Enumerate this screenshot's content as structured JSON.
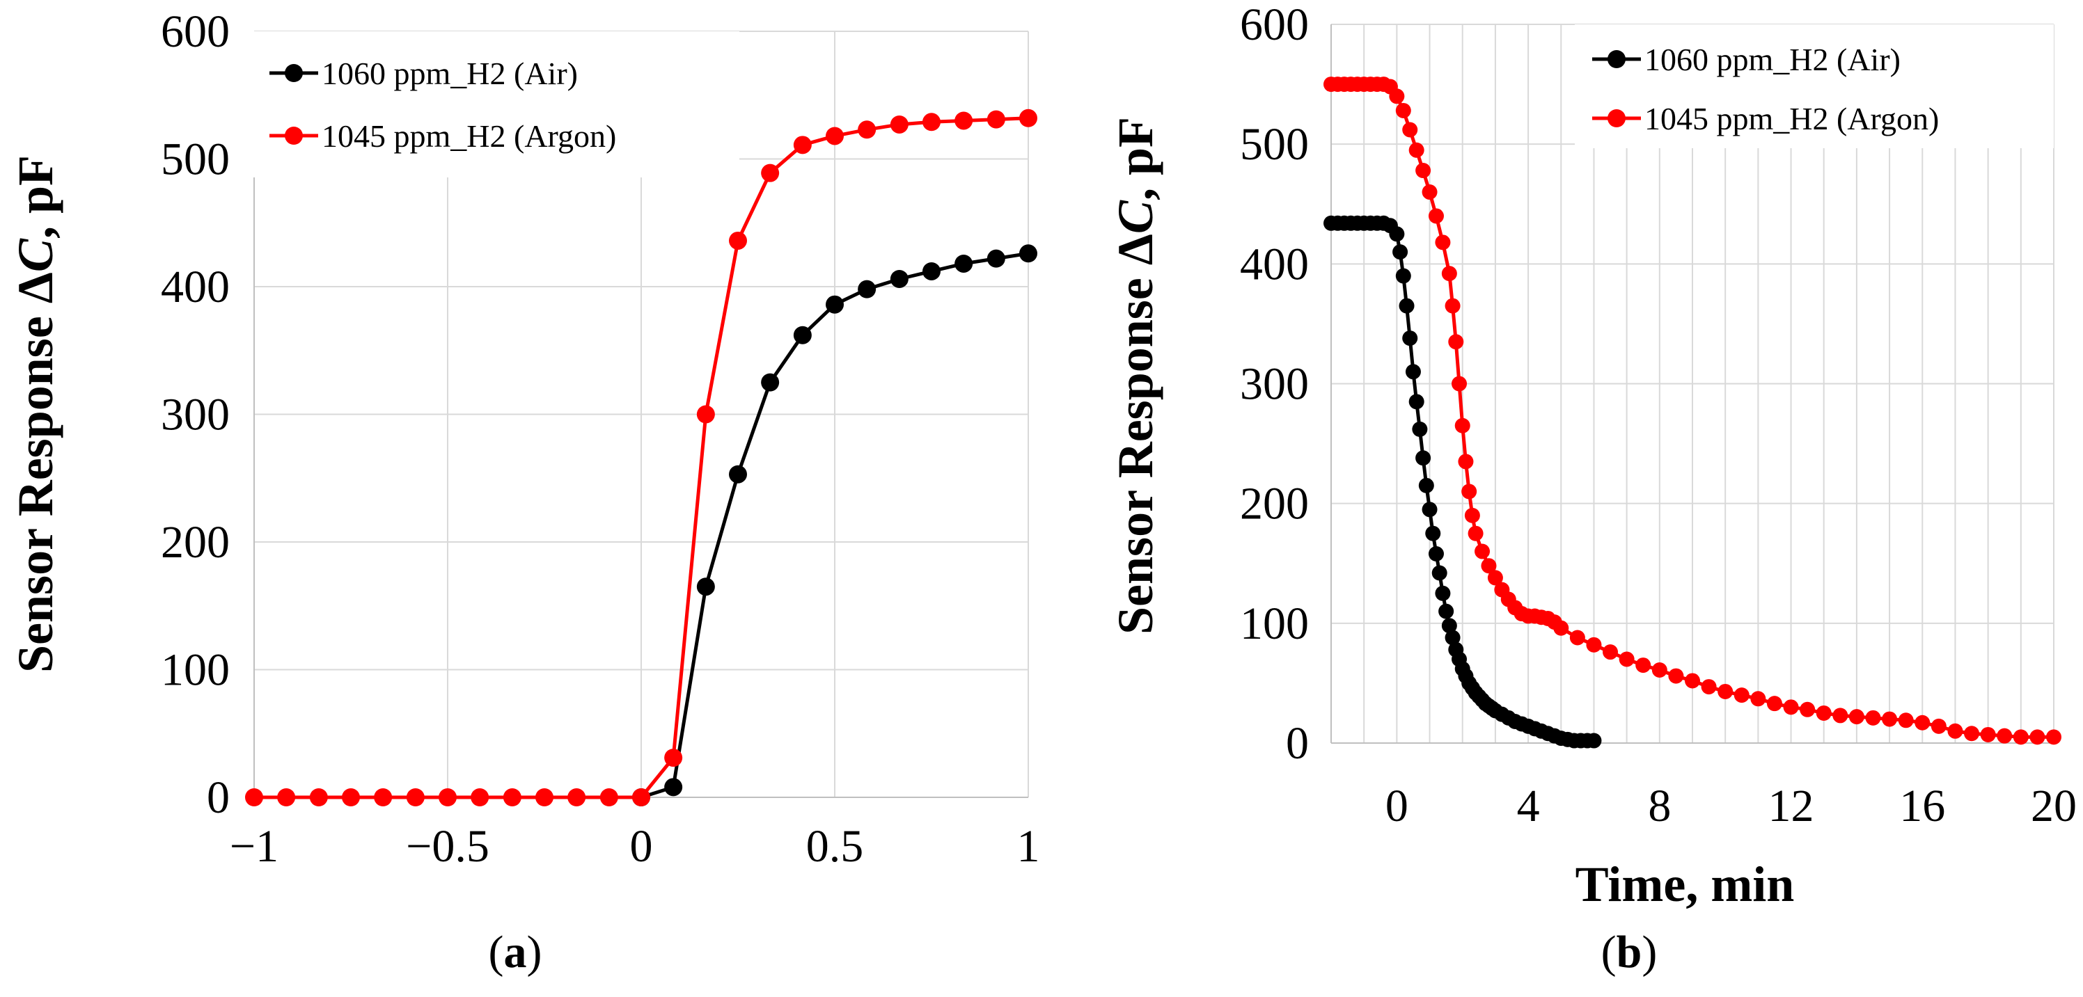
{
  "chart_data": [
    {
      "id": "a",
      "type": "line",
      "caption": {
        "open": "(",
        "letter": "a",
        "close": ")"
      },
      "title": "",
      "xlabel": "",
      "ylabel": {
        "pre": "Sensor Response ",
        "delta": "Δ",
        "var": "C",
        "post": ", pF"
      },
      "xlim": [
        -1,
        1
      ],
      "ylim": [
        0,
        600
      ],
      "xticks": [
        -1,
        -0.5,
        0,
        0.5,
        1
      ],
      "xtick_labels": [
        "−1",
        "−0.5",
        "0",
        "0.5",
        "1"
      ],
      "yticks": [
        0,
        100,
        200,
        300,
        400,
        500,
        600
      ],
      "ytick_labels": [
        "0",
        "100",
        "200",
        "300",
        "400",
        "500",
        "600"
      ],
      "grid": true,
      "legend_position": "top-left",
      "series": [
        {
          "name": "1060 ppm_H2 (Air)",
          "color": "#000000",
          "x": [
            0,
            0.083,
            0.167,
            0.25,
            0.333,
            0.417,
            0.5,
            0.583,
            0.667,
            0.75,
            0.833,
            0.917,
            1.0
          ],
          "y": [
            0,
            8,
            165,
            253,
            325,
            362,
            386,
            398,
            406,
            412,
            418,
            422,
            426
          ]
        },
        {
          "name": "1045 ppm_H2 (Argon)",
          "color": "#ff0000",
          "x": [
            -1,
            -0.917,
            -0.833,
            -0.75,
            -0.667,
            -0.583,
            -0.5,
            -0.417,
            -0.333,
            -0.25,
            -0.167,
            -0.083,
            0,
            0.083,
            0.167,
            0.25,
            0.333,
            0.417,
            0.5,
            0.583,
            0.667,
            0.75,
            0.833,
            0.917,
            1.0
          ],
          "y": [
            0,
            0,
            0,
            0,
            0,
            0,
            0,
            0,
            0,
            0,
            0,
            0,
            0,
            31,
            300,
            436,
            489,
            511,
            518,
            523,
            527,
            529,
            530,
            531,
            532
          ]
        }
      ]
    },
    {
      "id": "b",
      "type": "line",
      "caption": {
        "open": "(",
        "letter": "b",
        "close": ")"
      },
      "title": "",
      "xlabel": "Time, min",
      "ylabel": {
        "pre": "Sensor Response ",
        "delta": "Δ",
        "var": "C",
        "post": ", pF"
      },
      "xlim": [
        -2,
        20
      ],
      "ylim": [
        0,
        600
      ],
      "xticks": [
        0,
        4,
        8,
        12,
        16,
        20
      ],
      "xtick_labels": [
        "0",
        "4",
        "8",
        "12",
        "16",
        "20"
      ],
      "yticks": [
        0,
        100,
        200,
        300,
        400,
        500,
        600
      ],
      "ytick_labels": [
        "0",
        "100",
        "200",
        "300",
        "400",
        "500",
        "600"
      ],
      "grid": true,
      "legend_position": "top-right",
      "series": [
        {
          "name": "1060 ppm_H2 (Air)",
          "color": "#000000",
          "x": [
            -2,
            -1.8,
            -1.6,
            -1.4,
            -1.2,
            -1,
            -0.8,
            -0.6,
            -0.4,
            -0.2,
            0,
            0.1,
            0.2,
            0.3,
            0.4,
            0.5,
            0.6,
            0.7,
            0.8,
            0.9,
            1.0,
            1.1,
            1.2,
            1.3,
            1.4,
            1.5,
            1.6,
            1.7,
            1.8,
            1.9,
            2.0,
            2.1,
            2.2,
            2.3,
            2.4,
            2.5,
            2.6,
            2.7,
            2.8,
            2.9,
            3.0,
            3.2,
            3.4,
            3.6,
            3.8,
            4.0,
            4.2,
            4.4,
            4.6,
            4.8,
            5.0,
            5.2,
            5.4,
            5.6,
            5.8,
            6.0
          ],
          "y": [
            434,
            434,
            434,
            434,
            434,
            434,
            434,
            434,
            434,
            432,
            425,
            410,
            390,
            365,
            338,
            310,
            285,
            262,
            238,
            215,
            195,
            175,
            158,
            142,
            125,
            110,
            98,
            88,
            78,
            70,
            62,
            56,
            50,
            46,
            42,
            39,
            36,
            33,
            31,
            29,
            27,
            24,
            21,
            18,
            16,
            14,
            12,
            10,
            8,
            6,
            4,
            3,
            2,
            2,
            2,
            2
          ]
        },
        {
          "name": "1045 ppm_H2 (Argon)",
          "color": "#ff0000",
          "x": [
            -2,
            -1.8,
            -1.6,
            -1.4,
            -1.2,
            -1.0,
            -0.8,
            -0.6,
            -0.4,
            -0.2,
            0,
            0.2,
            0.4,
            0.6,
            0.8,
            1.0,
            1.2,
            1.4,
            1.6,
            1.7,
            1.8,
            1.9,
            2.0,
            2.1,
            2.2,
            2.3,
            2.4,
            2.6,
            2.8,
            3.0,
            3.2,
            3.4,
            3.6,
            3.8,
            4.0,
            4.2,
            4.4,
            4.6,
            4.8,
            5.0,
            5.5,
            6,
            6.5,
            7,
            7.5,
            8,
            8.5,
            9,
            9.5,
            10,
            10.5,
            11,
            11.5,
            12,
            12.5,
            13,
            13.5,
            14,
            14.5,
            15,
            15.5,
            16,
            16.5,
            17,
            17.5,
            18,
            18.5,
            19,
            19.5,
            20
          ],
          "y": [
            550,
            550,
            550,
            550,
            550,
            550,
            550,
            550,
            550,
            548,
            540,
            528,
            512,
            495,
            478,
            460,
            440,
            418,
            392,
            365,
            335,
            300,
            265,
            235,
            210,
            190,
            175,
            160,
            148,
            138,
            128,
            120,
            113,
            108,
            106,
            106,
            105,
            104,
            101,
            96,
            88,
            82,
            76,
            70,
            65,
            61,
            56,
            52,
            47,
            43,
            40,
            37,
            33,
            30,
            28,
            25,
            23,
            22,
            21,
            20,
            19,
            17,
            14,
            10,
            8,
            7,
            6,
            5,
            5,
            5
          ]
        }
      ]
    }
  ]
}
